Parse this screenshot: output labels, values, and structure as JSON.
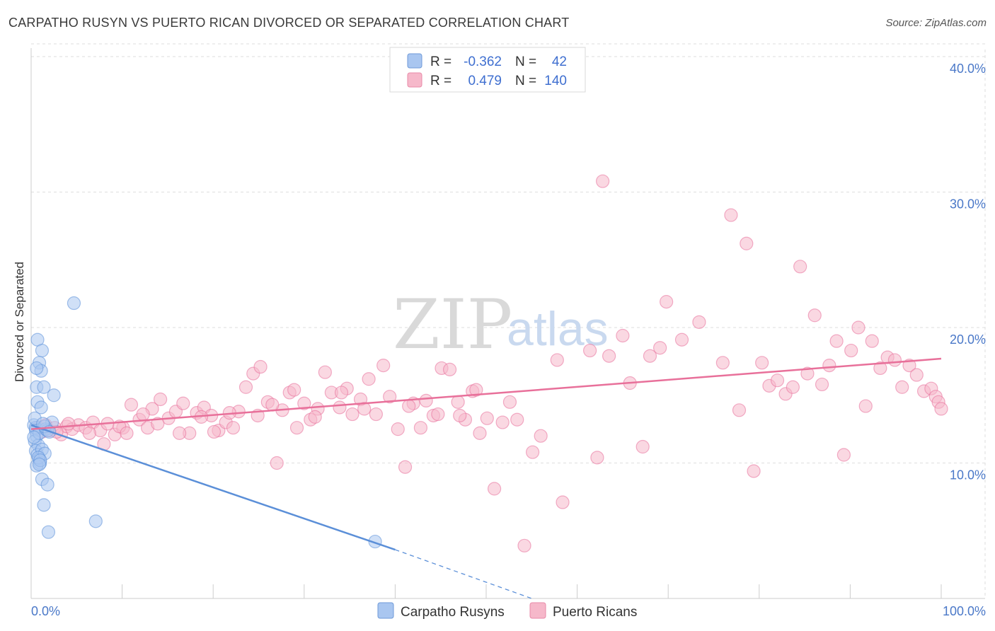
{
  "header": {
    "title": "CARPATHO RUSYN VS PUERTO RICAN DIVORCED OR SEPARATED CORRELATION CHART",
    "source": "Source: ZipAtlas.com"
  },
  "watermark": {
    "zip": "ZIP",
    "atlas": "atlas"
  },
  "legend": {
    "rows": [
      {
        "r_label": "R =",
        "r_value": "-0.362",
        "n_label": "N =",
        "n_value": "42",
        "color": "#a9c6f0"
      },
      {
        "r_label": "R =",
        "r_value": "0.479",
        "n_label": "N =",
        "n_value": "140",
        "color": "#f6b8ca"
      }
    ]
  },
  "bottom_legend": [
    {
      "label": "Carpatho Rusyns",
      "color": "#a9c6f0"
    },
    {
      "label": "Puerto Ricans",
      "color": "#f6b8ca"
    }
  ],
  "chart_data": {
    "type": "scatter",
    "title": "CARPATHO RUSYN VS PUERTO RICAN DIVORCED OR SEPARATED CORRELATION CHART",
    "xlabel": "",
    "ylabel": "Divorced or Separated",
    "xlim": [
      0,
      100
    ],
    "ylim": [
      0,
      40
    ],
    "x_tick_labels": [
      "0.0%",
      "100.0%"
    ],
    "y_ticks": [
      10,
      20,
      30,
      40
    ],
    "y_tick_labels": [
      "10.0%",
      "20.0%",
      "30.0%",
      "40.0%"
    ],
    "grid": true,
    "series": [
      {
        "name": "Carpatho Rusyns",
        "color": "#5b8fd8",
        "fill": "#a9c6f0",
        "trend": {
          "x": [
            0,
            40
          ],
          "y": [
            12.8,
            3.6
          ],
          "dashed_extension_to": [
            55,
            0
          ]
        },
        "points": [
          [
            0.3,
            12.8
          ],
          [
            0.5,
            12.4
          ],
          [
            0.6,
            12.0
          ],
          [
            0.4,
            11.6
          ],
          [
            0.8,
            11.3
          ],
          [
            0.5,
            10.9
          ],
          [
            0.7,
            10.6
          ],
          [
            0.9,
            10.3
          ],
          [
            1.0,
            10.0
          ],
          [
            0.6,
            9.8
          ],
          [
            0.5,
            12.6
          ],
          [
            0.9,
            12.2
          ],
          [
            1.2,
            11.0
          ],
          [
            1.5,
            10.7
          ],
          [
            1.6,
            12.5
          ],
          [
            2.3,
            13.0
          ],
          [
            0.7,
            19.1
          ],
          [
            1.2,
            18.3
          ],
          [
            0.9,
            17.4
          ],
          [
            1.1,
            16.8
          ],
          [
            0.6,
            15.6
          ],
          [
            1.4,
            15.6
          ],
          [
            2.5,
            15.0
          ],
          [
            0.7,
            14.5
          ],
          [
            1.1,
            14.1
          ],
          [
            0.4,
            13.3
          ],
          [
            1.8,
            12.4
          ],
          [
            0.8,
            10.4
          ],
          [
            1.2,
            8.8
          ],
          [
            1.8,
            8.4
          ],
          [
            1.4,
            6.9
          ],
          [
            1.9,
            4.9
          ],
          [
            7.1,
            5.7
          ],
          [
            4.7,
            21.8
          ],
          [
            37.8,
            4.2
          ],
          [
            1.0,
            10.2
          ],
          [
            0.3,
            11.9
          ],
          [
            1.5,
            12.7
          ],
          [
            0.9,
            9.9
          ],
          [
            0.6,
            17.0
          ],
          [
            1.3,
            12.9
          ],
          [
            2.0,
            12.3
          ]
        ]
      },
      {
        "name": "Puerto Ricans",
        "color": "#e8709a",
        "fill": "#f6b8ca",
        "trend": {
          "x": [
            0,
            100
          ],
          "y": [
            12.5,
            17.7
          ]
        },
        "points": [
          [
            0.8,
            12.6
          ],
          [
            1.2,
            12.3
          ],
          [
            1.6,
            12.8
          ],
          [
            2.0,
            12.4
          ],
          [
            2.6,
            12.6
          ],
          [
            3.3,
            12.1
          ],
          [
            3.9,
            12.7
          ],
          [
            4.5,
            12.5
          ],
          [
            5.2,
            12.8
          ],
          [
            6.0,
            12.6
          ],
          [
            6.8,
            13.0
          ],
          [
            7.6,
            12.4
          ],
          [
            8.4,
            12.9
          ],
          [
            9.2,
            12.1
          ],
          [
            10.1,
            12.6
          ],
          [
            11.0,
            14.3
          ],
          [
            11.9,
            13.2
          ],
          [
            12.8,
            12.6
          ],
          [
            13.3,
            14.0
          ],
          [
            14.2,
            14.7
          ],
          [
            15.1,
            13.3
          ],
          [
            15.9,
            13.8
          ],
          [
            16.7,
            14.4
          ],
          [
            17.4,
            12.2
          ],
          [
            18.2,
            13.7
          ],
          [
            19.0,
            14.1
          ],
          [
            19.8,
            13.5
          ],
          [
            20.6,
            12.4
          ],
          [
            21.4,
            13.0
          ],
          [
            22.2,
            12.6
          ],
          [
            22.8,
            13.8
          ],
          [
            23.6,
            15.6
          ],
          [
            24.4,
            16.6
          ],
          [
            25.2,
            17.1
          ],
          [
            26.0,
            14.5
          ],
          [
            27.0,
            10.0
          ],
          [
            27.6,
            13.9
          ],
          [
            28.4,
            15.2
          ],
          [
            29.2,
            12.6
          ],
          [
            30.0,
            14.4
          ],
          [
            30.7,
            13.2
          ],
          [
            31.5,
            14.0
          ],
          [
            32.3,
            16.7
          ],
          [
            33.0,
            15.2
          ],
          [
            33.9,
            14.1
          ],
          [
            34.7,
            15.5
          ],
          [
            35.3,
            13.6
          ],
          [
            36.2,
            14.7
          ],
          [
            37.1,
            16.2
          ],
          [
            37.9,
            13.6
          ],
          [
            38.7,
            17.2
          ],
          [
            39.4,
            14.9
          ],
          [
            40.3,
            12.5
          ],
          [
            41.1,
            9.7
          ],
          [
            42.0,
            14.4
          ],
          [
            42.8,
            12.6
          ],
          [
            43.4,
            14.6
          ],
          [
            44.2,
            13.5
          ],
          [
            45.1,
            17.0
          ],
          [
            46.0,
            16.9
          ],
          [
            46.9,
            14.5
          ],
          [
            47.7,
            13.2
          ],
          [
            48.5,
            15.3
          ],
          [
            49.3,
            12.2
          ],
          [
            50.1,
            13.3
          ],
          [
            50.9,
            8.1
          ],
          [
            51.8,
            13.0
          ],
          [
            52.6,
            14.5
          ],
          [
            53.4,
            13.2
          ],
          [
            54.2,
            3.9
          ],
          [
            55.1,
            10.8
          ],
          [
            56.0,
            12.0
          ],
          [
            57.8,
            17.6
          ],
          [
            58.4,
            7.1
          ],
          [
            61.4,
            18.3
          ],
          [
            62.2,
            10.4
          ],
          [
            62.8,
            30.8
          ],
          [
            63.5,
            17.9
          ],
          [
            65.0,
            19.4
          ],
          [
            65.8,
            15.9
          ],
          [
            67.2,
            11.2
          ],
          [
            68.0,
            17.9
          ],
          [
            69.1,
            18.5
          ],
          [
            69.8,
            21.9
          ],
          [
            71.5,
            19.1
          ],
          [
            73.4,
            20.4
          ],
          [
            76.0,
            17.4
          ],
          [
            76.9,
            28.3
          ],
          [
            77.8,
            13.9
          ],
          [
            78.6,
            26.2
          ],
          [
            79.4,
            9.4
          ],
          [
            80.3,
            17.4
          ],
          [
            81.1,
            15.7
          ],
          [
            82.0,
            16.1
          ],
          [
            82.9,
            15.1
          ],
          [
            83.7,
            15.6
          ],
          [
            84.5,
            24.5
          ],
          [
            85.3,
            16.6
          ],
          [
            86.1,
            20.9
          ],
          [
            86.9,
            15.8
          ],
          [
            87.7,
            17.2
          ],
          [
            88.5,
            19.0
          ],
          [
            89.3,
            10.6
          ],
          [
            90.1,
            18.3
          ],
          [
            90.9,
            20.0
          ],
          [
            91.7,
            14.2
          ],
          [
            92.4,
            19.0
          ],
          [
            93.3,
            17.0
          ],
          [
            94.1,
            17.8
          ],
          [
            94.9,
            17.6
          ],
          [
            95.7,
            15.6
          ],
          [
            96.5,
            17.2
          ],
          [
            97.3,
            16.5
          ],
          [
            98.1,
            15.3
          ],
          [
            98.9,
            15.5
          ],
          [
            99.4,
            14.9
          ],
          [
            99.7,
            14.5
          ],
          [
            100.0,
            14.0
          ],
          [
            2.8,
            12.3
          ],
          [
            4.1,
            12.9
          ],
          [
            6.4,
            12.2
          ],
          [
            8.0,
            11.4
          ],
          [
            9.7,
            12.7
          ],
          [
            10.5,
            12.2
          ],
          [
            12.3,
            13.6
          ],
          [
            13.9,
            12.9
          ],
          [
            16.3,
            12.2
          ],
          [
            18.7,
            13.4
          ],
          [
            20.1,
            12.3
          ],
          [
            21.8,
            13.7
          ],
          [
            24.9,
            13.5
          ],
          [
            26.5,
            14.3
          ],
          [
            28.9,
            15.4
          ],
          [
            31.2,
            13.4
          ],
          [
            34.1,
            15.2
          ],
          [
            36.6,
            14.0
          ],
          [
            41.5,
            14.2
          ],
          [
            44.7,
            13.6
          ],
          [
            47.1,
            13.5
          ],
          [
            48.9,
            15.4
          ]
        ]
      }
    ]
  }
}
